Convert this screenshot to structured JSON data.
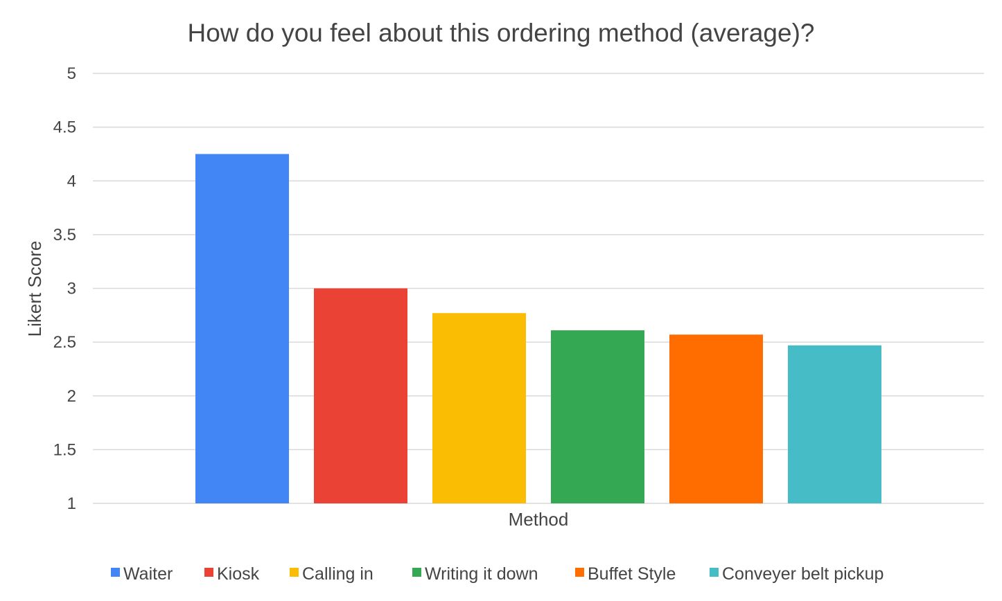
{
  "chart_data": {
    "type": "bar",
    "title": "How do you feel about this ordering method (average)?",
    "xlabel": "Method",
    "ylabel": "Likert Score",
    "ylim": [
      1,
      5
    ],
    "yticks": [
      "1",
      "1.5",
      "2",
      "2.5",
      "3",
      "3.5",
      "4",
      "4.5",
      "5"
    ],
    "grid": true,
    "legend_position": "bottom",
    "series": [
      {
        "name": "Waiter",
        "value": 4.25,
        "color": "#4285F4"
      },
      {
        "name": "Kiosk",
        "value": 3.0,
        "color": "#EA4335"
      },
      {
        "name": "Calling in",
        "value": 2.77,
        "color": "#FBBC04"
      },
      {
        "name": "Writing it down",
        "value": 2.61,
        "color": "#34A853"
      },
      {
        "name": "Buffet Style",
        "value": 2.57,
        "color": "#FF6D01"
      },
      {
        "name": "Conveyer belt pickup",
        "value": 2.47,
        "color": "#46BDC6"
      }
    ]
  }
}
